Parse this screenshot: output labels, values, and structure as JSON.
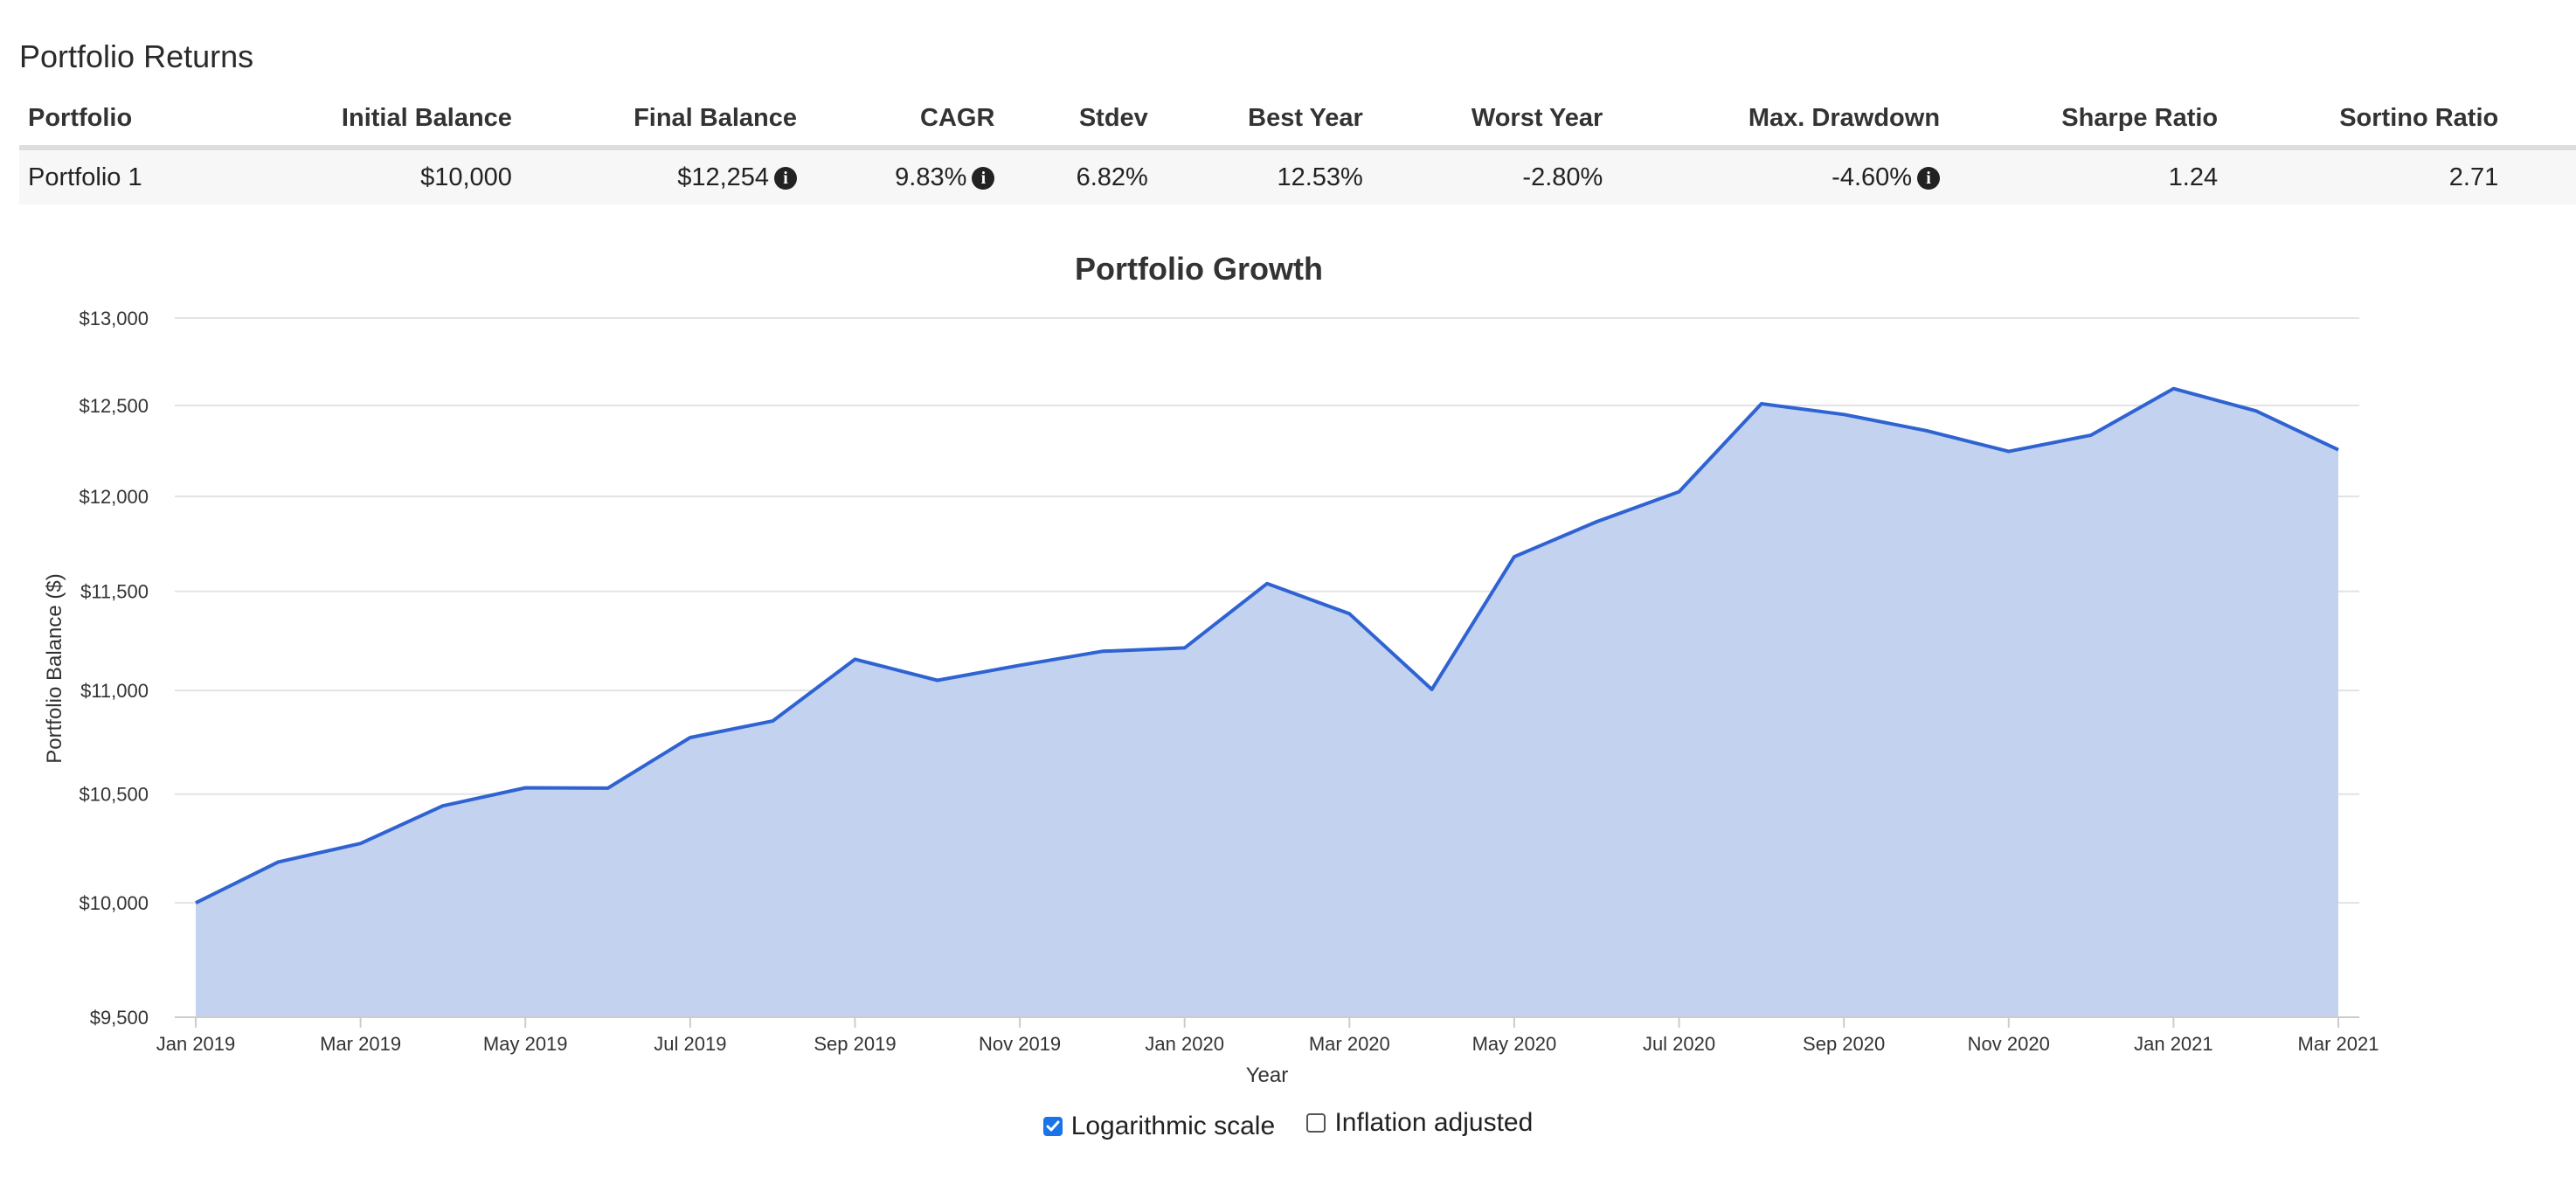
{
  "section_title": "Portfolio Returns",
  "table": {
    "headers": [
      "Portfolio",
      "Initial Balance",
      "Final Balance",
      "CAGR",
      "Stdev",
      "Best Year",
      "Worst Year",
      "Max. Drawdown",
      "Sharpe Ratio",
      "Sortino Ratio"
    ],
    "rows": [
      [
        "Portfolio 1",
        "$10,000",
        "$12,254",
        "9.83%",
        "6.82%",
        "12.53%",
        "-2.80%",
        "-4.60%",
        "1.24",
        "2.71"
      ]
    ]
  },
  "icons": {
    "info": "info-circle-icon",
    "checkbox_checked": "check-icon"
  },
  "chart_data": {
    "type": "area",
    "title": "Portfolio Growth",
    "xlabel": "Year",
    "ylabel": "Portfolio Balance ($)",
    "y_scale": "log",
    "ylim": [
      9500,
      13000
    ],
    "y_ticks": [
      9500,
      10000,
      10500,
      11000,
      11500,
      12000,
      12500,
      13000
    ],
    "y_tick_labels": [
      "$9,500",
      "$10,000",
      "$10,500",
      "$11,000",
      "$11,500",
      "$12,000",
      "$12,500",
      "$13,000"
    ],
    "x_tick_labels": [
      "Jan 2019",
      "Mar 2019",
      "May 2019",
      "Jul 2019",
      "Sep 2019",
      "Nov 2019",
      "Jan 2020",
      "Mar 2020",
      "May 2020",
      "Jul 2020",
      "Sep 2020",
      "Nov 2020",
      "Jan 2021",
      "Mar 2021"
    ],
    "grid": true,
    "legend": "none",
    "colors": {
      "line": "#2f63d2",
      "fill": "#c3d2ef"
    },
    "series": [
      {
        "x": [
          "Jan 2019",
          "Feb 2019",
          "Mar 2019",
          "Apr 2019",
          "May 2019",
          "Jun 2019",
          "Jul 2019",
          "Aug 2019",
          "Sep 2019",
          "Oct 2019",
          "Nov 2019",
          "Dec 2019",
          "Jan 2020",
          "Feb 2020",
          "Mar 2020",
          "Apr 2020",
          "May 2020",
          "Jun 2020",
          "Jul 2020",
          "Aug 2020",
          "Sep 2020",
          "Oct 2020",
          "Nov 2020",
          "Dec 2020",
          "Jan 2021",
          "Feb 2021",
          "Mar 2021"
        ],
        "values": [
          10000,
          10185,
          10270,
          10445,
          10530,
          10528,
          10770,
          10850,
          11155,
          11050,
          11125,
          11195,
          11212,
          11540,
          11385,
          11005,
          11680,
          11865,
          12025,
          12510,
          12450,
          12360,
          12245,
          12335,
          12595,
          12470,
          12254
        ]
      }
    ]
  },
  "options": [
    {
      "label": "Logarithmic scale",
      "checked": true
    },
    {
      "label": "Inflation adjusted",
      "checked": false
    }
  ]
}
